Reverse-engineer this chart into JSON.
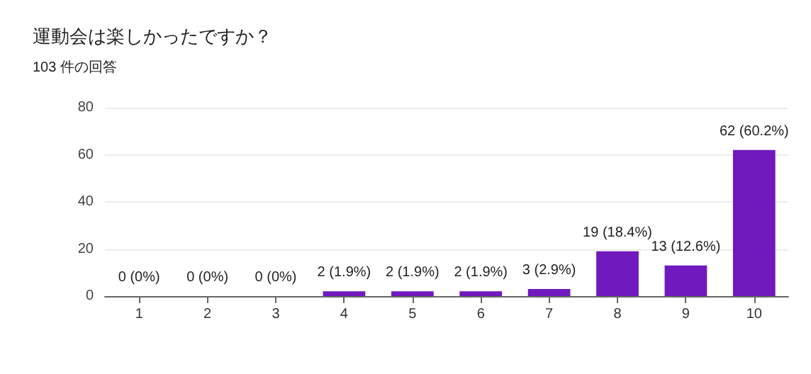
{
  "chart_data": {
    "type": "bar",
    "title": "運動会は楽しかったですか？",
    "subtitle": "103 件の回答",
    "categories": [
      "1",
      "2",
      "3",
      "4",
      "5",
      "6",
      "7",
      "8",
      "9",
      "10"
    ],
    "values": [
      0,
      0,
      0,
      2,
      2,
      2,
      3,
      19,
      13,
      62
    ],
    "value_labels": [
      "0 (0%)",
      "0 (0%)",
      "0 (0%)",
      "2 (1.9%)",
      "2 (1.9%)",
      "2 (1.9%)",
      "3 (2.9%)",
      "19 (18.4%)",
      "13 (12.6%)",
      "62 (60.2%)"
    ],
    "color": "#7019bd",
    "ylim": [
      0,
      80
    ],
    "yticks": [
      0,
      20,
      40,
      60,
      80
    ],
    "grid": "y"
  }
}
